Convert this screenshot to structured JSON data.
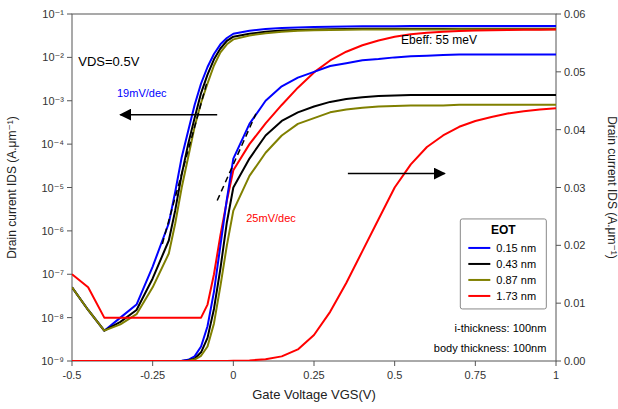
{
  "chart_data": {
    "type": "line",
    "xlabel": "Gate Voltage VGS(V)",
    "ylabel": "Drain current IDS (A.μm⁻¹)",
    "y2label": "Drain current IDS (A.μm⁻¹)",
    "log": "y",
    "grid": false,
    "legend": "lower right",
    "legend_title": "EOT",
    "xlim": [
      -0.5,
      1.0
    ],
    "xticks": [
      -0.5,
      -0.25,
      0,
      0.25,
      0.5,
      0.75,
      1
    ],
    "ylim": [
      1e-09,
      0.1
    ],
    "yticks": [
      {
        "value": 1e-09,
        "label": "10⁻⁹"
      },
      {
        "value": 1e-08,
        "label": "10⁻⁸"
      },
      {
        "value": 1e-07,
        "label": "10⁻⁷"
      },
      {
        "value": 1e-06,
        "label": "10⁻⁶"
      },
      {
        "value": 1e-05,
        "label": "10⁻⁵"
      },
      {
        "value": 0.0001,
        "label": "10⁻⁴"
      },
      {
        "value": 0.001,
        "label": "10⁻³"
      },
      {
        "value": 0.01,
        "label": "10⁻²"
      },
      {
        "value": 0.1,
        "label": "10⁻¹"
      }
    ],
    "y2lim": [
      0.0,
      0.06
    ],
    "y2ticks": [
      {
        "value": 0,
        "label": "0.00"
      },
      0.01,
      0.02,
      0.03,
      0.04,
      0.05,
      0.06
    ],
    "x": [
      -0.5,
      -0.45,
      -0.4,
      -0.35,
      -0.3,
      -0.25,
      -0.2,
      -0.18,
      -0.16,
      -0.14,
      -0.12,
      -0.1,
      -0.08,
      -0.06,
      -0.04,
      -0.02,
      0.0,
      0.05,
      0.1,
      0.15,
      0.2,
      0.25,
      0.3,
      0.35,
      0.4,
      0.45,
      0.5,
      0.55,
      0.6,
      0.65,
      0.7,
      0.75,
      0.8,
      0.85,
      0.9,
      0.95,
      1.0
    ],
    "series": [
      {
        "name": "0.15 nm",
        "color": "#0000FF",
        "values": [
          5e-08,
          1.5e-08,
          5e-09,
          1e-08,
          2e-08,
          1.5e-07,
          1.5e-06,
          8e-06,
          5e-05,
          0.0002,
          0.0008,
          0.0025,
          0.006,
          0.012,
          0.02,
          0.028,
          0.035,
          0.041,
          0.045,
          0.0475,
          0.049,
          0.05,
          0.051,
          0.0515,
          0.052,
          0.0522,
          0.0525,
          0.0527,
          0.0528,
          0.0529,
          0.053,
          0.053,
          0.053,
          0.053,
          0.053,
          0.053,
          0.053
        ]
      },
      {
        "name": "0.43 nm",
        "color": "#000000",
        "values": [
          5e-08,
          1.5e-08,
          5e-09,
          8e-09,
          1.5e-08,
          8e-08,
          6e-07,
          3e-06,
          2e-05,
          0.0001,
          0.0004,
          0.0015,
          0.004,
          0.009,
          0.016,
          0.024,
          0.03,
          0.035,
          0.039,
          0.0415,
          0.043,
          0.044,
          0.0448,
          0.0453,
          0.0456,
          0.0458,
          0.0459,
          0.046,
          0.046,
          0.046,
          0.046,
          0.046,
          0.046,
          0.046,
          0.046,
          0.046,
          0.046
        ]
      },
      {
        "name": "0.87 nm",
        "color": "#808000",
        "values": [
          5e-08,
          1.5e-08,
          5e-09,
          7e-09,
          1.2e-08,
          5e-08,
          3e-07,
          1.5e-06,
          1e-05,
          5e-05,
          0.00025,
          0.0009,
          0.0025,
          0.0065,
          0.013,
          0.02,
          0.026,
          0.032,
          0.036,
          0.039,
          0.041,
          0.042,
          0.043,
          0.0435,
          0.0438,
          0.044,
          0.0441,
          0.0442,
          0.0442,
          0.0442,
          0.0443,
          0.0443,
          0.0443,
          0.0443,
          0.0443,
          0.0443,
          0.0443
        ]
      },
      {
        "name": "1.73 nm",
        "color": "#FF0000",
        "values": [
          1e-07,
          5e-08,
          1e-08,
          1e-08,
          1e-08,
          1e-08,
          1e-08,
          1e-08,
          1e-08,
          1e-08,
          1e-08,
          1e-08,
          2e-08,
          1e-07,
          8e-07,
          5e-06,
          2.5e-05,
          0.0001,
          0.0003,
          0.0008,
          0.002,
          0.0045,
          0.0085,
          0.0135,
          0.019,
          0.0245,
          0.03,
          0.034,
          0.037,
          0.039,
          0.0405,
          0.0415,
          0.0422,
          0.0428,
          0.0432,
          0.0435,
          0.0437
        ]
      },
      {
        "axis": "y2",
        "color": "#0000FF",
        "values": [
          5e-08,
          1.5e-08,
          5e-09,
          1e-08,
          2e-08,
          1.5e-07,
          1.5e-06,
          8e-06,
          5e-05,
          0.0002,
          0.0008,
          0.0025,
          0.006,
          0.012,
          0.02,
          0.028,
          0.035,
          0.041,
          0.045,
          0.0475,
          0.049,
          0.05,
          0.051,
          0.0515,
          0.052,
          0.0522,
          0.0525,
          0.0527,
          0.0528,
          0.0529,
          0.053,
          0.053,
          0.053,
          0.053,
          0.053,
          0.053,
          0.053
        ]
      },
      {
        "axis": "y2",
        "color": "#000000",
        "values": [
          5e-08,
          1.5e-08,
          5e-09,
          8e-09,
          1.5e-08,
          8e-08,
          6e-07,
          3e-06,
          2e-05,
          0.0001,
          0.0004,
          0.0015,
          0.004,
          0.009,
          0.016,
          0.024,
          0.03,
          0.035,
          0.039,
          0.0415,
          0.043,
          0.044,
          0.0448,
          0.0453,
          0.0456,
          0.0458,
          0.0459,
          0.046,
          0.046,
          0.046,
          0.046,
          0.046,
          0.046,
          0.046,
          0.046,
          0.046,
          0.046
        ]
      },
      {
        "axis": "y2",
        "color": "#808000",
        "values": [
          5e-08,
          1.5e-08,
          5e-09,
          7e-09,
          1.2e-08,
          5e-08,
          3e-07,
          1.5e-06,
          1e-05,
          5e-05,
          0.00025,
          0.0009,
          0.0025,
          0.0065,
          0.013,
          0.02,
          0.026,
          0.032,
          0.036,
          0.039,
          0.041,
          0.042,
          0.043,
          0.0435,
          0.0438,
          0.044,
          0.0441,
          0.0442,
          0.0442,
          0.0442,
          0.0443,
          0.0443,
          0.0443,
          0.0443,
          0.0443,
          0.0443,
          0.0443
        ]
      },
      {
        "axis": "y2",
        "color": "#FF0000",
        "values": [
          1e-07,
          5e-08,
          1e-08,
          1e-08,
          1e-08,
          1e-08,
          1e-08,
          1e-08,
          1e-08,
          1e-08,
          1e-08,
          1e-08,
          2e-08,
          1e-07,
          8e-07,
          5e-06,
          2.5e-05,
          0.0001,
          0.0003,
          0.0008,
          0.002,
          0.0045,
          0.0085,
          0.0135,
          0.019,
          0.0245,
          0.03,
          0.034,
          0.037,
          0.039,
          0.0405,
          0.0415,
          0.0422,
          0.0428,
          0.0432,
          0.0435,
          0.0437
        ]
      },
      {
        "color": "#000000",
        "line_style": "dashed",
        "x": [
          -0.22,
          -0.08
        ],
        "values": [
          5e-07,
          0.003
        ]
      },
      {
        "color": "#000000",
        "line_style": "dashed",
        "x": [
          -0.05,
          0.07
        ],
        "values": [
          5e-06,
          0.0005
        ]
      }
    ],
    "annotations": [
      {
        "text": "VDS=0.5V"
      },
      {
        "text": "Ebeff: 55 meV"
      },
      {
        "text": "19mV/dec",
        "color": "#0000FF"
      },
      {
        "text": "25mV/dec",
        "color": "#FF0000"
      },
      {
        "text": "i-thickness: 100nm"
      },
      {
        "text": "body thickness: 100nm"
      }
    ]
  }
}
